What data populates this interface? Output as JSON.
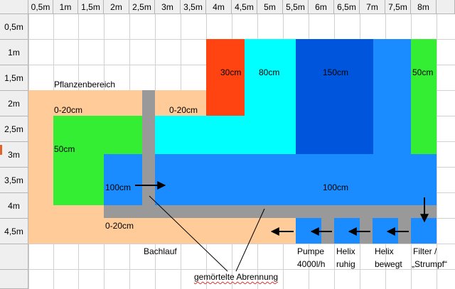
{
  "columns": [
    "0,5m",
    "1m",
    "1,5m",
    "2m",
    "2,5m",
    "3m",
    "3,5m",
    "4m",
    "4,5m",
    "5m",
    "5,5m",
    "6m",
    "6,5m",
    "7m",
    "7,5m",
    "8m"
  ],
  "rows": [
    "0,5m",
    "1m",
    "1,5m",
    "2m",
    "2,5m",
    "3m",
    "3,5m",
    "4m",
    "4,5m"
  ],
  "zones": {
    "plant_area": "Pflanzenbereich",
    "shallow_left": "0-20cm",
    "shallow_mid": "0-20cm",
    "shallow_bottom": "0-20cm",
    "depth_50_left": "50cm",
    "depth_30": "30cm",
    "depth_80": "80cm",
    "depth_150": "150cm",
    "depth_50_right": "50cm",
    "depth_100_left": "100cm",
    "depth_100_main": "100cm"
  },
  "captions": {
    "stream": "Bachlauf",
    "pump_line1": "Pumpe",
    "pump_line2": "4000l/h",
    "helix_calm_line1": "Helix",
    "helix_calm_line2": "ruhig",
    "helix_moving_line1": "Helix",
    "helix_moving_line2": "bewegt",
    "filter_line1": "Filter /",
    "filter_line2": "„Strumpf“",
    "divider": "gemörtelte Abrennung"
  },
  "colors": {
    "header_bg": "#efefef",
    "grid_line": "#d2d2d2",
    "shallow": "#ffcc99",
    "green": "#33ee33",
    "blue": "#1a8cff",
    "cyan": "#00ffff",
    "dark_blue": "#0055dd",
    "orange_red": "#ff4411",
    "wall": "#999999",
    "marker": "#e2632a"
  }
}
